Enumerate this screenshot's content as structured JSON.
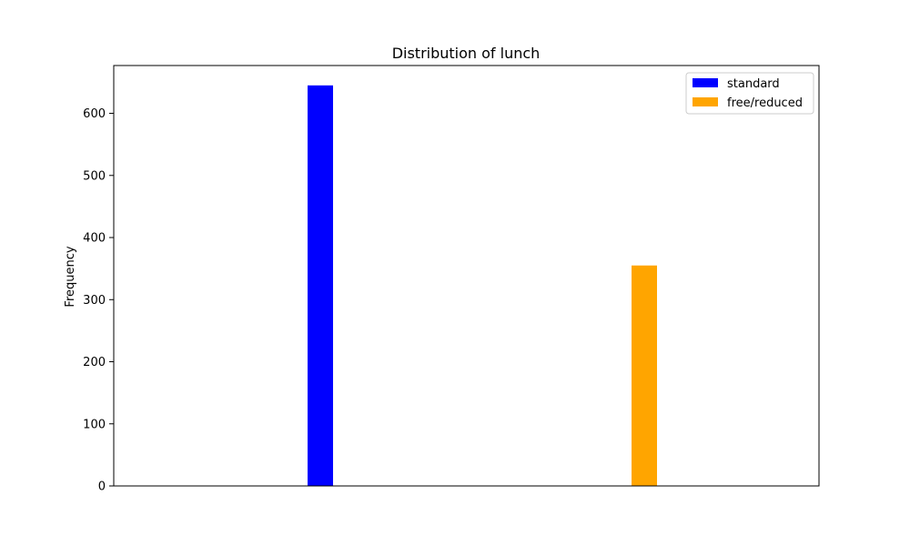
{
  "chart_data": {
    "type": "bar",
    "title": "Distribution of lunch",
    "xlabel": "",
    "ylabel": "Frequency",
    "ylim": [
      0,
      677
    ],
    "yticks": [
      0,
      100,
      200,
      300,
      400,
      500,
      600
    ],
    "grid": false,
    "legend_position": "top-right",
    "series": [
      {
        "name": "standard",
        "value": 645,
        "color": "#0000ff"
      },
      {
        "name": "free/reduced",
        "value": 355,
        "color": "#ffa500"
      }
    ]
  }
}
